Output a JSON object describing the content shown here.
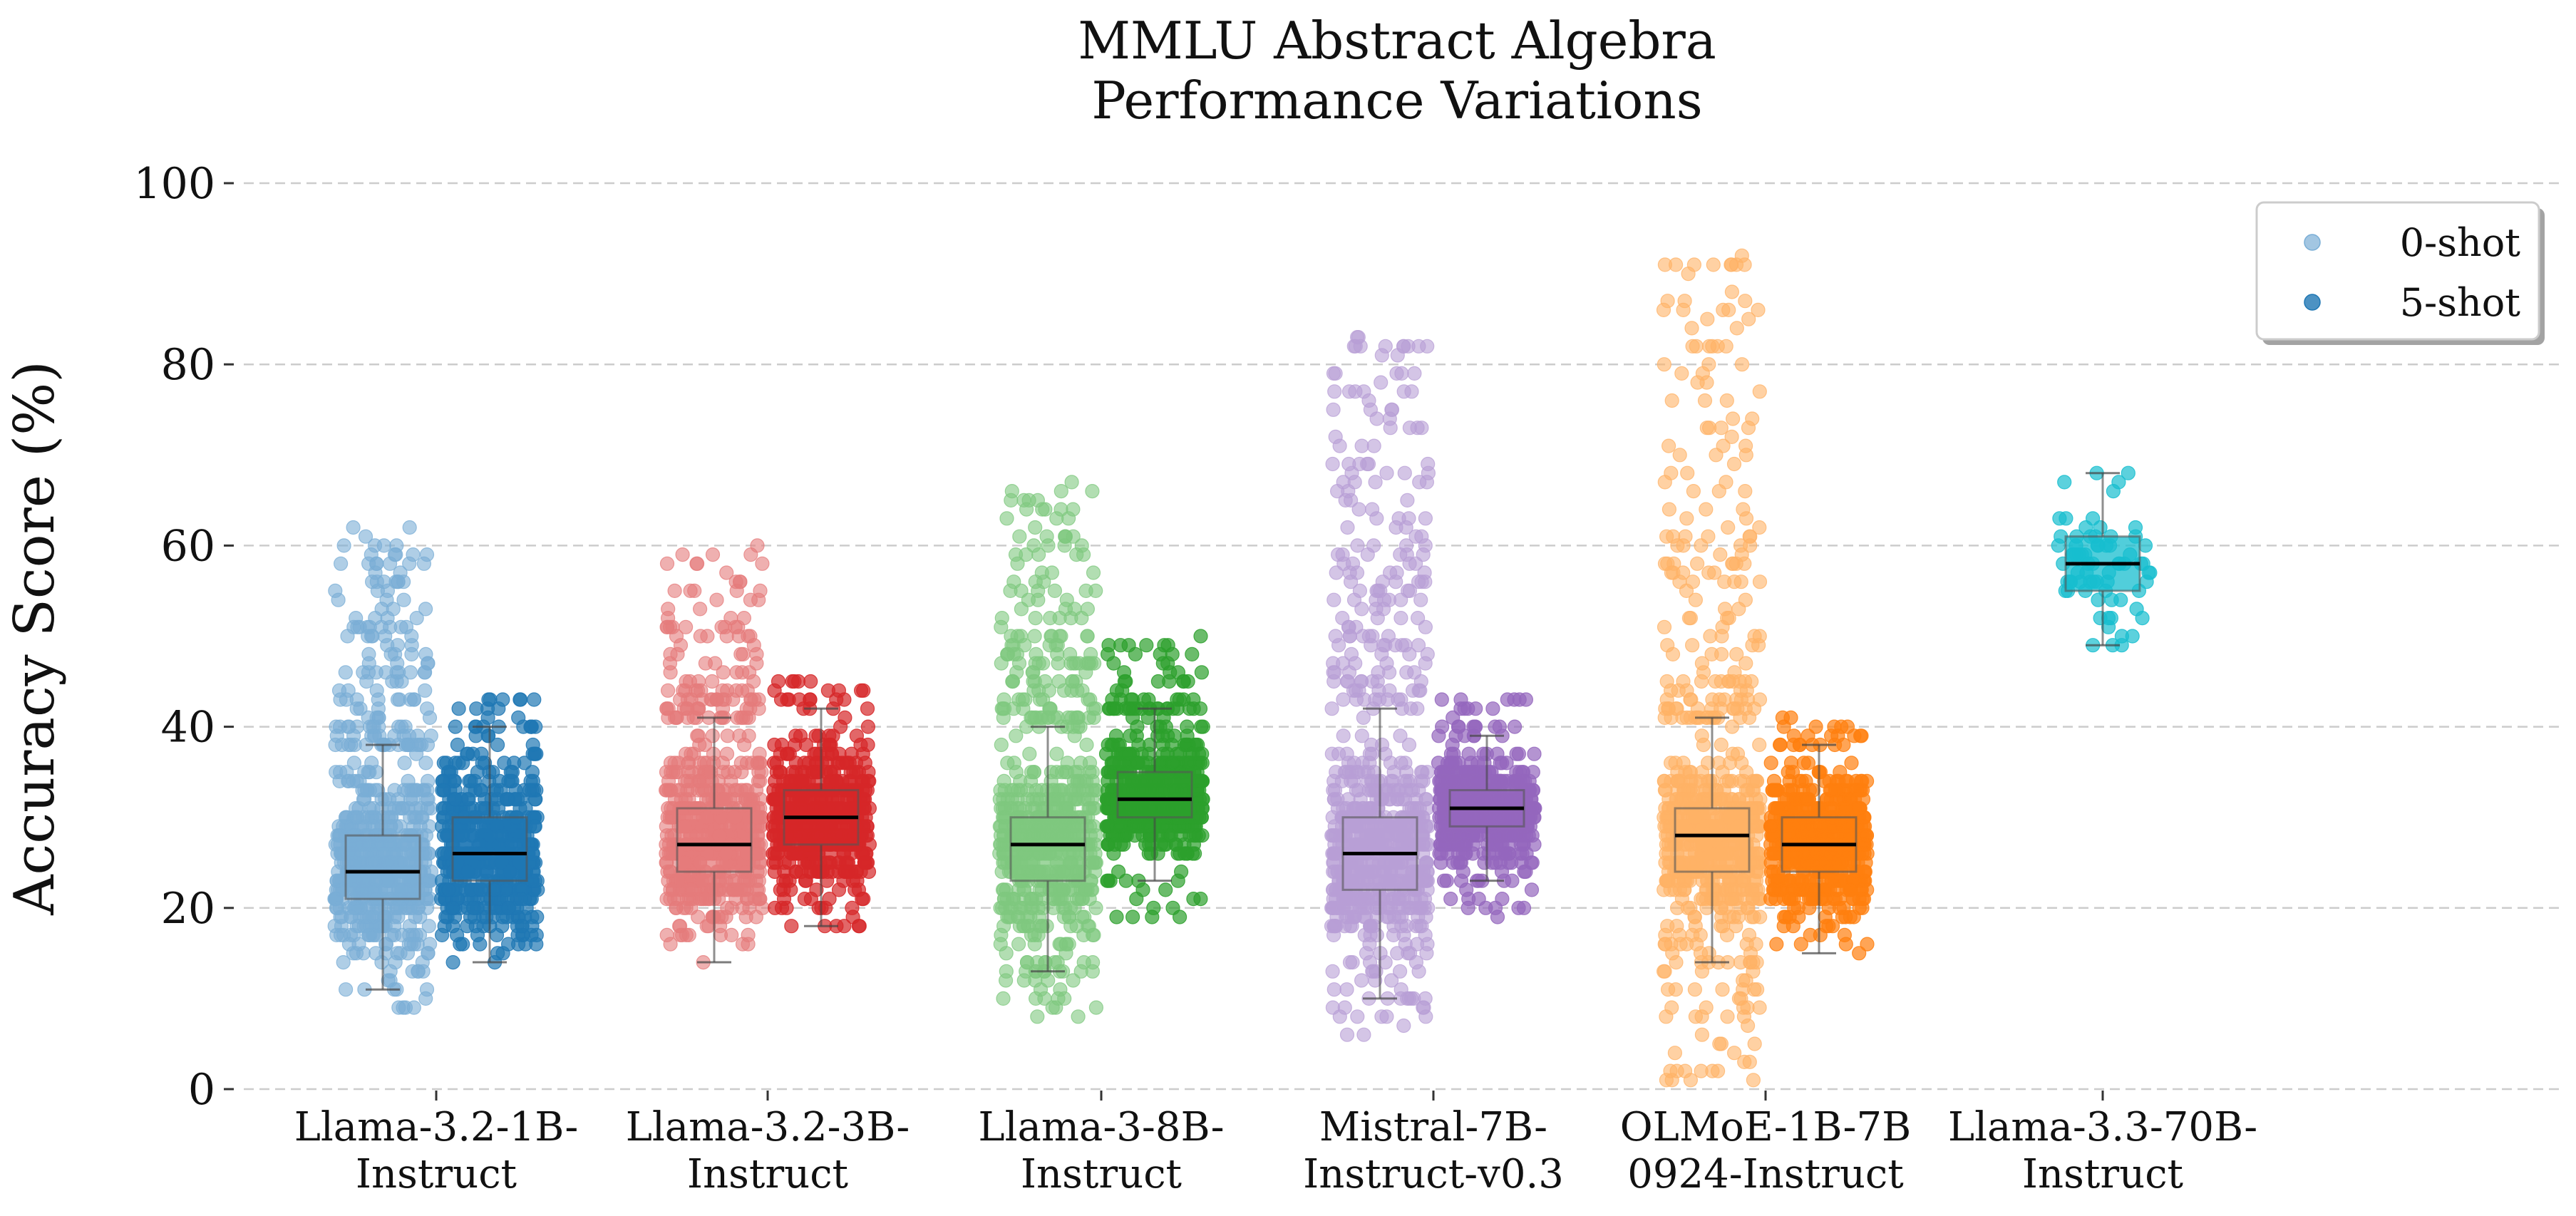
{
  "chart_data": {
    "type": "box-strip",
    "title": "MMLU Abstract Algebra\nPerformance Variations",
    "xlabel": "",
    "ylabel": "Accuracy Score (%)",
    "ylim": [
      0,
      100
    ],
    "yticks": [
      0,
      20,
      40,
      60,
      80,
      100
    ],
    "grid": "horizontal-dashed",
    "legend": {
      "placement": "top-right",
      "entries": [
        "0-shot",
        "5-shot"
      ]
    },
    "categories": [
      "Llama-3.2-1B-\nInstruct",
      "Llama-3.2-3B-\nInstruct",
      "Llama-3-8B-\nInstruct",
      "Mistral-7B-\nInstruct-v0.3",
      "OLMoE-1B-7B\n0924-Instruct",
      "Llama-3.3-70B-\nInstruct"
    ],
    "series": [
      {
        "name": "0-shot",
        "boxes": [
          {
            "model": "Llama-3.2-1B-Instruct",
            "color": "#7aaed6",
            "whisker_low": 11,
            "q1": 21,
            "median": 24,
            "q3": 28,
            "whisker_high": 38,
            "min": 9,
            "max": 62
          },
          {
            "model": "Llama-3.2-3B-Instruct",
            "color": "#e57b7b",
            "whisker_low": 14,
            "q1": 24,
            "median": 27,
            "q3": 31,
            "whisker_high": 41,
            "min": 14,
            "max": 60
          },
          {
            "model": "Llama-3-8B-Instruct",
            "color": "#7fc87f",
            "whisker_low": 13,
            "q1": 23,
            "median": 27,
            "q3": 30,
            "whisker_high": 40,
            "min": 8,
            "max": 67
          },
          {
            "model": "Mistral-7B-Instruct-v0.3",
            "color": "#b89fd6",
            "whisker_low": 10,
            "q1": 22,
            "median": 26,
            "q3": 30,
            "whisker_high": 42,
            "min": 6,
            "max": 83
          },
          {
            "model": "OLMoE-1B-7B-0924-Instruct",
            "color": "#ffb266",
            "whisker_low": 14,
            "q1": 24,
            "median": 28,
            "q3": 31,
            "whisker_high": 41,
            "min": 1,
            "max": 92
          }
        ]
      },
      {
        "name": "5-shot",
        "boxes": [
          {
            "model": "Llama-3.2-1B-Instruct",
            "color": "#1f77b4",
            "whisker_low": 14,
            "q1": 23,
            "median": 26,
            "q3": 30,
            "whisker_high": 40,
            "min": 14,
            "max": 43
          },
          {
            "model": "Llama-3.2-3B-Instruct",
            "color": "#d62728",
            "whisker_low": 18,
            "q1": 27,
            "median": 30,
            "q3": 33,
            "whisker_high": 42,
            "min": 18,
            "max": 45
          },
          {
            "model": "Llama-3-8B-Instruct",
            "color": "#2ca02c",
            "whisker_low": 23,
            "q1": 30,
            "median": 32,
            "q3": 35,
            "whisker_high": 42,
            "min": 19,
            "max": 50
          },
          {
            "model": "Mistral-7B-Instruct-v0.3",
            "color": "#9467bd",
            "whisker_low": 23,
            "q1": 29,
            "median": 31,
            "q3": 33,
            "whisker_high": 39,
            "min": 19,
            "max": 43
          },
          {
            "model": "OLMoE-1B-7B-0924-Instruct",
            "color": "#ff7f0e",
            "whisker_low": 15,
            "q1": 24,
            "median": 27,
            "q3": 30,
            "whisker_high": 38,
            "min": 15,
            "max": 41
          },
          {
            "model": "Llama-3.3-70B-Instruct",
            "color": "#17becf",
            "whisker_low": 49,
            "q1": 55,
            "median": 58,
            "q3": 61,
            "whisker_high": 68,
            "min": 49,
            "max": 68
          }
        ]
      }
    ]
  }
}
